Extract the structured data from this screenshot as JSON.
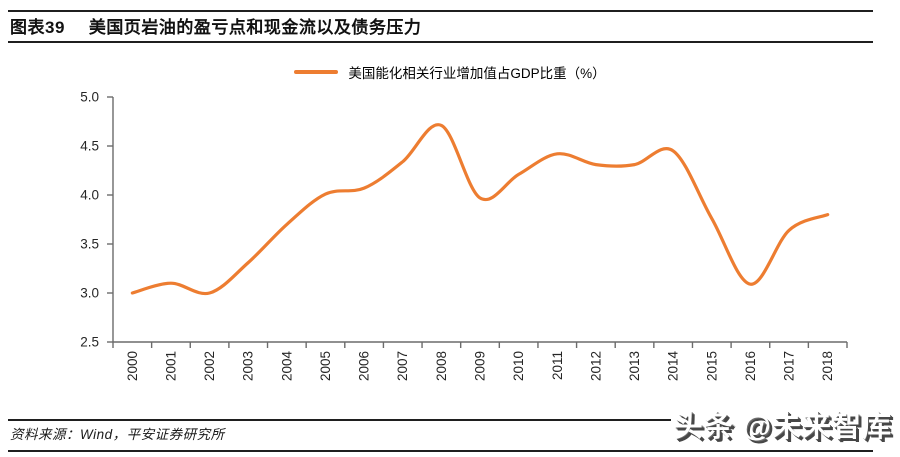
{
  "header": {
    "label": "图表39",
    "title": "美国页岩油的盈亏点和现金流以及债务压力"
  },
  "legend": {
    "label": "美国能化相关行业增加值占GDP比重（%）"
  },
  "chart_data": {
    "type": "line",
    "x": [
      "2000",
      "2001",
      "2002",
      "2003",
      "2004",
      "2005",
      "2006",
      "2007",
      "2008",
      "2009",
      "2010",
      "2011",
      "2012",
      "2013",
      "2014",
      "2015",
      "2016",
      "2017",
      "2018"
    ],
    "series": [
      {
        "name": "美国能化相关行业增加值占GDP比重（%）",
        "color": "#ED7D31",
        "values": [
          3.0,
          3.1,
          3.0,
          3.31,
          3.7,
          4.01,
          4.07,
          4.34,
          4.71,
          3.97,
          4.21,
          4.42,
          4.31,
          4.31,
          4.45,
          3.76,
          3.09,
          3.64,
          3.8
        ]
      }
    ],
    "ylim": [
      2.5,
      5.0
    ],
    "ytick_step": 0.5,
    "ytick_labels": [
      "5.0",
      "4.5",
      "4.0",
      "3.5",
      "3.0",
      "2.5"
    ],
    "xlabel": "",
    "ylabel": "",
    "grid": false,
    "smooth": true,
    "legend_position": "top"
  },
  "footer": {
    "source": "资料来源：Wind，平安证券研究所"
  },
  "watermark": {
    "text": "头条 @未来智库"
  },
  "colors": {
    "line": "#ED7D31",
    "axis": "#6b6b6b",
    "tick_text": "#262626",
    "rule": "#1f1f1f"
  }
}
